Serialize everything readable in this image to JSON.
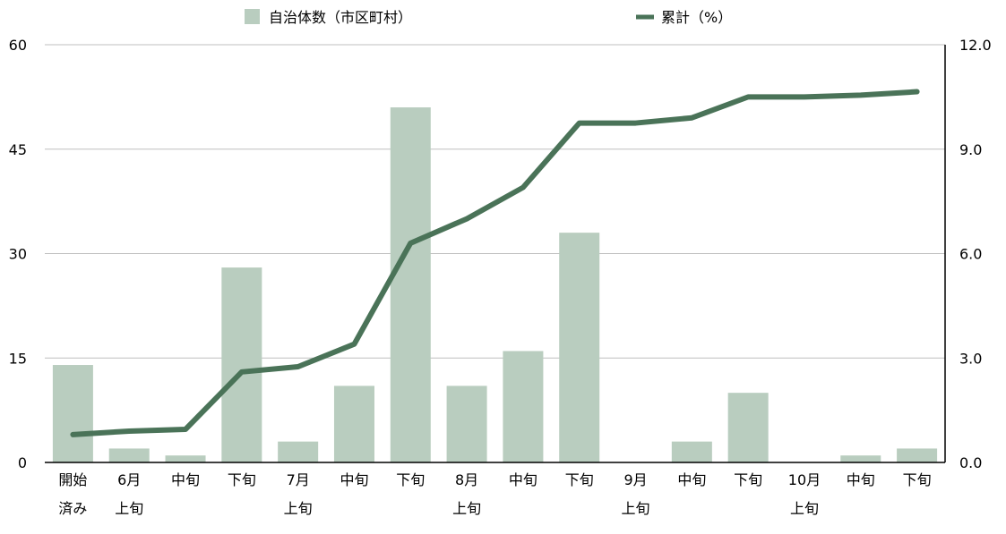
{
  "chart_data": {
    "type": "bar",
    "categories": [
      [
        "開始",
        "済み"
      ],
      [
        "6月",
        "上旬"
      ],
      [
        "中旬"
      ],
      [
        "下旬"
      ],
      [
        "7月",
        "上旬"
      ],
      [
        "中旬"
      ],
      [
        "下旬"
      ],
      [
        "8月",
        "上旬"
      ],
      [
        "中旬"
      ],
      [
        "下旬"
      ],
      [
        "9月",
        "上旬"
      ],
      [
        "中旬"
      ],
      [
        "下旬"
      ],
      [
        "10月",
        "上旬"
      ],
      [
        "中旬"
      ],
      [
        "下旬"
      ]
    ],
    "series": [
      {
        "name": "自治体数（市区町村）",
        "type": "bar",
        "axis": "left",
        "values": [
          14,
          2,
          1,
          28,
          3,
          11,
          51,
          11,
          16,
          33,
          0,
          3,
          10,
          0,
          1,
          2
        ],
        "color": "#b9cdbf"
      },
      {
        "name": "累計（%）",
        "type": "line",
        "axis": "right",
        "values": [
          0.8,
          0.9,
          0.95,
          2.6,
          2.75,
          3.4,
          6.3,
          7.0,
          7.9,
          9.75,
          9.75,
          9.9,
          10.5,
          10.5,
          10.55,
          10.65
        ],
        "color": "#4a7358"
      }
    ],
    "y_left": {
      "ylim": [
        0,
        60
      ],
      "ticks": [
        "0",
        "15",
        "30",
        "45",
        "60"
      ]
    },
    "y_right": {
      "ylim": [
        0,
        12
      ],
      "ticks": [
        "0.0",
        "3.0",
        "6.0",
        "9.0",
        "12.0"
      ]
    },
    "grid": true,
    "legend_position": "top"
  }
}
